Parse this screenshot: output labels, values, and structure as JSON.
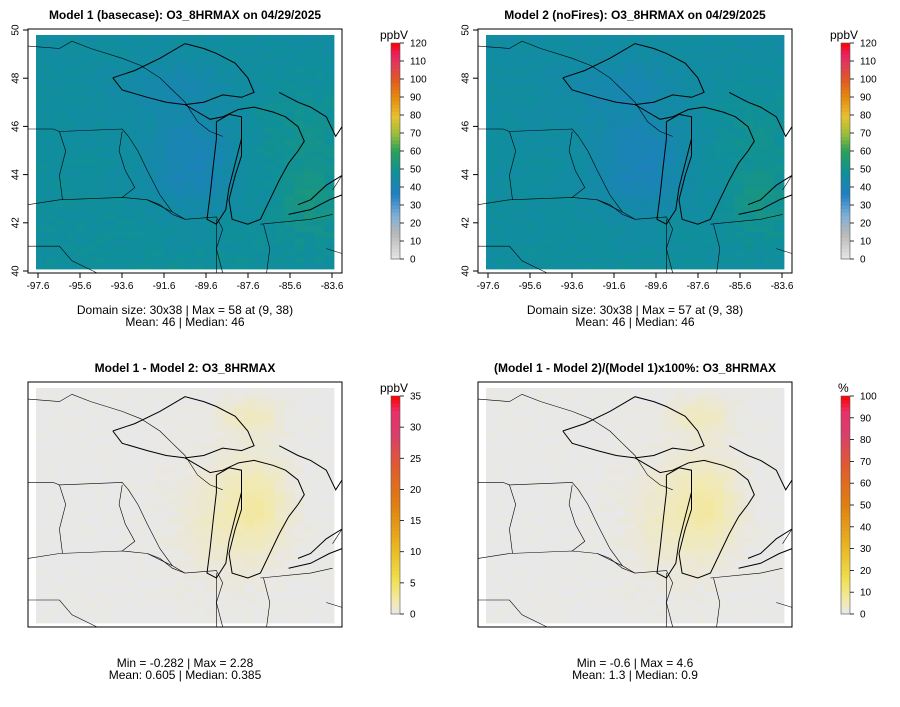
{
  "panels": [
    {
      "title": "Model 1 (basecase): O3_8HRMAX on 04/29/2025",
      "unit": "ppbV",
      "stats_line1": "Domain size: 30x38 | Max = 58 at (9, 38)",
      "stats_line2": "Mean: 46 |  Median: 46",
      "has_axes": true,
      "colorbar_ticks": [
        "0",
        "10",
        "20",
        "30",
        "40",
        "50",
        "60",
        "70",
        "80",
        "90",
        "100",
        "110",
        "120"
      ],
      "colorbar_max": 120,
      "colormap": "full",
      "field_style": "abs",
      "field_max": 58
    },
    {
      "title": "Model 2 (noFires): O3_8HRMAX on 04/29/2025",
      "unit": "ppbV",
      "stats_line1": "Domain size: 30x38 | Max = 57 at (9, 38)",
      "stats_line2": "Mean: 46 |  Median: 46",
      "has_axes": true,
      "colorbar_ticks": [
        "0",
        "10",
        "20",
        "30",
        "40",
        "50",
        "60",
        "70",
        "80",
        "90",
        "100",
        "110",
        "120"
      ],
      "colorbar_max": 120,
      "colormap": "full",
      "field_style": "abs",
      "field_max": 57
    },
    {
      "title": "Model 1 - Model 2: O3_8HRMAX",
      "unit": "ppbV",
      "stats_line1": "Min = -0.282 | Max = 2.28",
      "stats_line2": "Mean: 0.605 |  Median: 0.385",
      "has_axes": false,
      "colorbar_ticks": [
        "0",
        "5",
        "10",
        "15",
        "20",
        "25",
        "30",
        "35"
      ],
      "colorbar_max": 35,
      "colormap": "warm",
      "field_style": "diff",
      "field_max": 2.28
    },
    {
      "title": "(Model 1 - Model 2)/(Model 1)x100%: O3_8HRMAX",
      "unit": "%",
      "stats_line1": "Min = -0.6 | Max = 4.6",
      "stats_line2": "Mean: 1.3 |  Median: 0.9",
      "has_axes": false,
      "colorbar_ticks": [
        "0",
        "10",
        "20",
        "30",
        "40",
        "50",
        "60",
        "70",
        "80",
        "90",
        "100"
      ],
      "colorbar_max": 100,
      "colormap": "warm",
      "field_style": "diff",
      "field_max": 4.6
    }
  ],
  "axes": {
    "x_ticks": [
      "-97.6",
      "-95.6",
      "-93.6",
      "-91.6",
      "-89.6",
      "-87.6",
      "-85.6",
      "-83.6"
    ],
    "y_ticks": [
      "40",
      "42",
      "44",
      "46",
      "48",
      "50"
    ]
  },
  "chart_data": [
    {
      "type": "heatmap",
      "title": "Model 1 (basecase): O3_8HRMAX on 04/29/2025",
      "units": "ppbV",
      "grid_size": [
        30,
        38
      ],
      "x_ticks": [
        -97.6,
        -95.6,
        -93.6,
        -91.6,
        -89.6,
        -87.6,
        -85.6,
        -83.6
      ],
      "y_ticks": [
        40,
        42,
        44,
        46,
        48,
        50
      ],
      "xlim": [
        -97.6,
        -83.6
      ],
      "ylim": [
        40,
        50
      ],
      "color_range": [
        0,
        120
      ],
      "max": 58,
      "max_location": [
        9,
        38
      ],
      "mean": 46,
      "median": 46
    },
    {
      "type": "heatmap",
      "title": "Model 2 (noFires): O3_8HRMAX on 04/29/2025",
      "units": "ppbV",
      "grid_size": [
        30,
        38
      ],
      "x_ticks": [
        -97.6,
        -95.6,
        -93.6,
        -91.6,
        -89.6,
        -87.6,
        -85.6,
        -83.6
      ],
      "y_ticks": [
        40,
        42,
        44,
        46,
        48,
        50
      ],
      "xlim": [
        -97.6,
        -83.6
      ],
      "ylim": [
        40,
        50
      ],
      "color_range": [
        0,
        120
      ],
      "max": 57,
      "max_location": [
        9,
        38
      ],
      "mean": 46,
      "median": 46
    },
    {
      "type": "heatmap",
      "title": "Model 1 - Model 2: O3_8HRMAX",
      "units": "ppbV",
      "color_range": [
        0,
        35
      ],
      "min": -0.282,
      "max": 2.28,
      "mean": 0.605,
      "median": 0.385
    },
    {
      "type": "heatmap",
      "title": "(Model 1 - Model 2)/(Model 1)x100%: O3_8HRMAX",
      "units": "%",
      "color_range": [
        0,
        100
      ],
      "min": -0.6,
      "max": 4.6,
      "mean": 1.3,
      "median": 0.9
    }
  ]
}
